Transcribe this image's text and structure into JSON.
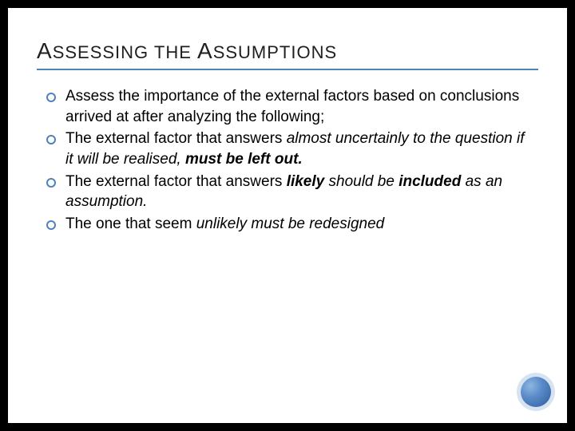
{
  "title": {
    "cap1": "A",
    "part1": "SSESSING",
    "mid": " THE ",
    "cap2": "A",
    "part2": "SSUMPTIONS"
  },
  "bullets": [
    {
      "spans": [
        {
          "text": "Assess the importance of the external factors based on conclusions arrived at after analyzing the following;",
          "style": ""
        }
      ]
    },
    {
      "spans": [
        {
          "text": "The external factor that answers ",
          "style": ""
        },
        {
          "text": "almost uncertainly",
          "style": "i"
        },
        {
          "text": " to the question if it will be realised, ",
          "style": "i"
        },
        {
          "text": "must be left out.",
          "style": "bi"
        }
      ]
    },
    {
      "spans": [
        {
          "text": "The external factor that answers ",
          "style": ""
        },
        {
          "text": "likely",
          "style": "bi"
        },
        {
          "text": " should be ",
          "style": "i"
        },
        {
          "text": "included",
          "style": "bi"
        },
        {
          "text": " as an assumption.",
          "style": "i"
        }
      ]
    },
    {
      "spans": [
        {
          "text": "The one that seem ",
          "style": ""
        },
        {
          "text": "unlikely must be redesigned",
          "style": "i"
        }
      ]
    }
  ],
  "colors": {
    "accent": "#4f81bd",
    "background": "#ffffff",
    "page_bg": "#000000",
    "text": "#000000"
  }
}
